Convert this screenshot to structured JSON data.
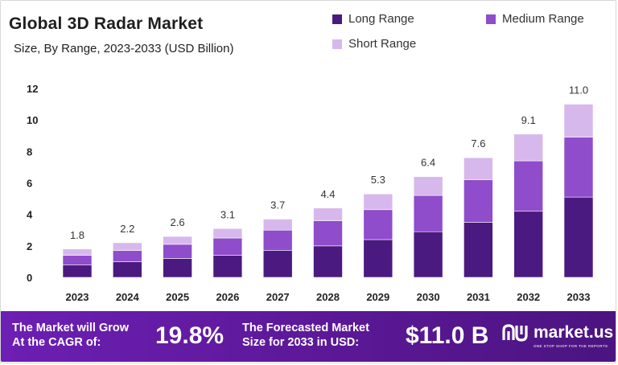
{
  "header": {
    "title": "Global 3D Radar Market",
    "subtitle": "Size, By Range, 2023-2033 (USD Billion)"
  },
  "colors": {
    "long_range": "#4b1a80",
    "medium_range": "#8f4ccb",
    "short_range": "#d7b8ec",
    "footer_bg": "#5b1896",
    "text": "#222222"
  },
  "chart_data": {
    "type": "bar",
    "stacked": true,
    "categories": [
      "2023",
      "2024",
      "2025",
      "2026",
      "2027",
      "2028",
      "2029",
      "2030",
      "2031",
      "2032",
      "2033"
    ],
    "series": [
      {
        "name": "Long Range",
        "values": [
          0.8,
          1.0,
          1.2,
          1.4,
          1.7,
          2.0,
          2.4,
          2.9,
          3.5,
          4.2,
          5.1
        ]
      },
      {
        "name": "Medium Range",
        "values": [
          0.6,
          0.7,
          0.9,
          1.1,
          1.3,
          1.6,
          1.9,
          2.3,
          2.7,
          3.2,
          3.8
        ]
      },
      {
        "name": "Short Range",
        "values": [
          0.4,
          0.5,
          0.5,
          0.6,
          0.7,
          0.8,
          1.0,
          1.2,
          1.4,
          1.7,
          2.1
        ]
      }
    ],
    "totals": [
      "1.8",
      "2.2",
      "2.6",
      "3.1",
      "3.7",
      "4.4",
      "5.3",
      "6.4",
      "7.6",
      "9.1",
      "11.0"
    ],
    "yticks": [
      "0",
      "2",
      "4",
      "6",
      "8",
      "10",
      "12"
    ],
    "ylim": [
      0,
      12
    ],
    "legend_position": "top-right",
    "grid": false
  },
  "footer": {
    "cagr_label_line1": "The Market will Grow",
    "cagr_label_line2": "At the CAGR of:",
    "cagr_value": "19.8%",
    "forecast_label_line1": "The Forecasted Market",
    "forecast_label_line2": "Size for 2033 in USD:",
    "forecast_value": "$11.0 B",
    "brand_name": "market.us",
    "brand_tagline": "ONE STOP SHOP FOR THE REPORTS"
  }
}
